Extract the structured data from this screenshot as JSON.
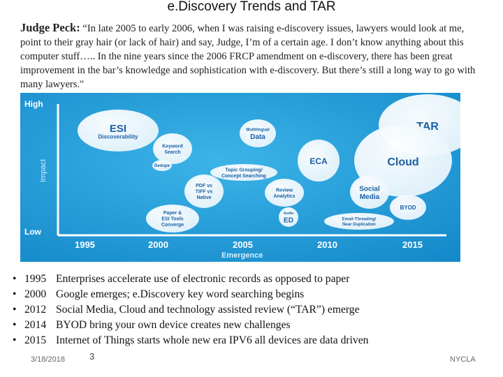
{
  "slide": {
    "title": "e.Discovery Trends and TAR",
    "quote_speaker": "Judge Peck:",
    "quote_text": " “In late 2005 to early 2006, when I was raising e-discovery issues, lawyers would look at me, point to their gray hair (or lack of hair) and say, Judge, I’m of a certain age. I don’t know anything about this computer stuff….. In the nine years since the 2006 FRCP amendment on e-discovery, there has been great improvement in the bar’s knowledge and sophistication with e-discovery. But there’s still a long way to go with many lawyers.\""
  },
  "chart": {
    "y_high": "High",
    "y_low": "Low",
    "y_label": "Impact",
    "x_label": "Emergence",
    "x_ticks": [
      "1995",
      "2000",
      "2005",
      "2010",
      "2015"
    ],
    "bubbles": [
      {
        "lines": [
          "ESI",
          "Discoverability"
        ]
      },
      {
        "lines": [
          "Keyword",
          "Search"
        ]
      },
      {
        "lines": [
          "Dedupe"
        ]
      },
      {
        "lines": [
          "Multilingual",
          "Data"
        ]
      },
      {
        "lines": [
          "Topic Grouping/",
          "Concept Searching"
        ]
      },
      {
        "lines": [
          "PDF vs",
          "TIFF vs",
          "Native"
        ]
      },
      {
        "lines": [
          "Review",
          "Analytics"
        ]
      },
      {
        "lines": [
          "Paper &",
          "ESI Tools",
          "Converge"
        ]
      },
      {
        "lines": [
          "Audio",
          "ED"
        ]
      },
      {
        "lines": [
          "ECA"
        ]
      },
      {
        "lines": [
          "TAR"
        ]
      },
      {
        "lines": [
          "Cloud"
        ]
      },
      {
        "lines": [
          "Social",
          "Media"
        ]
      },
      {
        "lines": [
          "BYOD"
        ]
      },
      {
        "lines": [
          "Email-Threading/",
          "Near Duplication"
        ]
      }
    ]
  },
  "bullets": [
    {
      "year": "1995",
      "text": "Enterprises accelerate use of electronic records as opposed to paper"
    },
    {
      "year": "2000",
      "text": "Google emerges; e.Discovery key word searching begins"
    },
    {
      "year": "2012",
      "text": "Social Media, Cloud and technology assisted review (“TAR”)  emerge"
    },
    {
      "year": "2014",
      "text": "BYOD bring your own device creates new challenges"
    },
    {
      "year": "2015",
      "text": "Internet of  Things starts whole new era IPV6 all devices are data driven"
    }
  ],
  "footer": {
    "date": "3/18/2018",
    "page": "3",
    "org": "NYCLA"
  },
  "colors": {
    "chart_blue": "#1f9bd7",
    "bubble_text": "#1b5fa3",
    "bubble_fill": "#ffffff"
  }
}
